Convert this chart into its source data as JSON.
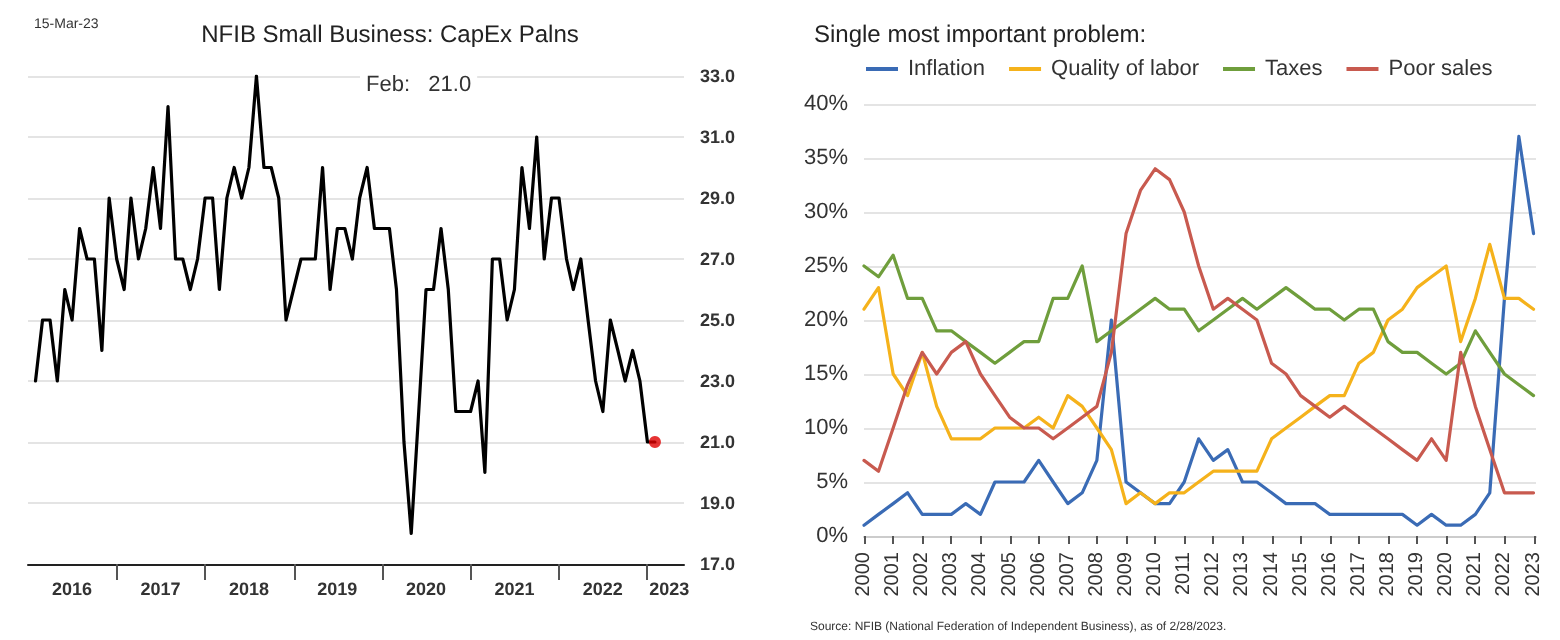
{
  "chart_data": [
    {
      "type": "line",
      "title": "NFIB Small Business: CapEx Palns",
      "annotations": [
        "15-Mar-23",
        "Feb:   21.0"
      ],
      "grid": "y",
      "line_style": "solid",
      "marker": "none",
      "x": [
        "2016-02",
        "2016-03",
        "2016-04",
        "2016-05",
        "2016-06",
        "2016-07",
        "2016-08",
        "2016-09",
        "2016-10",
        "2016-11",
        "2016-12",
        "2017-01",
        "2017-02",
        "2017-03",
        "2017-04",
        "2017-05",
        "2017-06",
        "2017-07",
        "2017-08",
        "2017-09",
        "2017-10",
        "2017-11",
        "2017-12",
        "2018-01",
        "2018-02",
        "2018-03",
        "2018-04",
        "2018-05",
        "2018-06",
        "2018-07",
        "2018-08",
        "2018-09",
        "2018-10",
        "2018-11",
        "2018-12",
        "2019-01",
        "2019-02",
        "2019-03",
        "2019-04",
        "2019-05",
        "2019-06",
        "2019-07",
        "2019-08",
        "2019-09",
        "2019-10",
        "2019-11",
        "2019-12",
        "2020-01",
        "2020-02",
        "2020-03",
        "2020-04",
        "2020-05",
        "2020-06",
        "2020-07",
        "2020-08",
        "2020-09",
        "2020-10",
        "2020-11",
        "2020-12",
        "2021-01",
        "2021-02",
        "2021-03",
        "2021-04",
        "2021-05",
        "2021-06",
        "2021-07",
        "2021-08",
        "2021-09",
        "2021-10",
        "2021-11",
        "2021-12",
        "2022-01",
        "2022-02",
        "2022-03",
        "2022-04",
        "2022-05",
        "2022-06",
        "2022-07",
        "2022-08",
        "2022-09",
        "2022-10",
        "2022-11",
        "2022-12",
        "2023-01",
        "2023-02"
      ],
      "series": [
        {
          "color": "#000000",
          "values": [
            23,
            25,
            25,
            23,
            26,
            25,
            28,
            27,
            27,
            24,
            29,
            27,
            26,
            29,
            27,
            28,
            30,
            28,
            32,
            27,
            27,
            26,
            27,
            29,
            29,
            26,
            29,
            30,
            29,
            30,
            33,
            30,
            30,
            29,
            25,
            26,
            27,
            27,
            27,
            30,
            26,
            28,
            28,
            27,
            29,
            30,
            28,
            28,
            28,
            26,
            21,
            18,
            22,
            26,
            26,
            28,
            26,
            22,
            22,
            22,
            23,
            20,
            27,
            27,
            25,
            26,
            30,
            28,
            31,
            27,
            29,
            29,
            27,
            26,
            27,
            25,
            23,
            22,
            25,
            24,
            23,
            24,
            23,
            21,
            21
          ]
        },
        {
          "type": "scatter",
          "marker": "circle",
          "color": "#e00000",
          "x": [
            "2023-02"
          ],
          "values": [
            21
          ]
        }
      ],
      "xlim": [
        "2016-01",
        "2023-06"
      ],
      "xticks": [
        {
          "value": "2016-07",
          "label": "2016"
        },
        {
          "value": "2017-01",
          "label": null
        },
        {
          "value": "2017-07",
          "label": "2017"
        },
        {
          "value": "2018-01",
          "label": null
        },
        {
          "value": "2018-07",
          "label": "2018"
        },
        {
          "value": "2019-01",
          "label": null
        },
        {
          "value": "2019-07",
          "label": "2019"
        },
        {
          "value": "2020-01",
          "label": null
        },
        {
          "value": "2020-07",
          "label": "2020"
        },
        {
          "value": "2021-01",
          "label": null
        },
        {
          "value": "2021-07",
          "label": "2021"
        },
        {
          "value": "2022-01",
          "label": null
        },
        {
          "value": "2022-07",
          "label": "2022"
        },
        {
          "value": "2023-01",
          "label": null
        },
        {
          "value": "2023-04",
          "label": "2023"
        }
      ],
      "ylim": [
        17,
        33
      ],
      "yticks": [
        {
          "value": 17,
          "label": "17.0"
        },
        {
          "value": 19,
          "label": "19.0"
        },
        {
          "value": 21,
          "label": "21.0"
        },
        {
          "value": 23,
          "label": "23.0"
        },
        {
          "value": 25,
          "label": "25.0"
        },
        {
          "value": 27,
          "label": "27.0"
        },
        {
          "value": 29,
          "label": "29.0"
        },
        {
          "value": 31,
          "label": "31.0"
        },
        {
          "value": 33,
          "label": "33.0"
        }
      ]
    },
    {
      "type": "line",
      "title": "Single most important problem:",
      "annotations": [
        "Source: NFIB (National Federation of Independent Business), as of 2/28/2023."
      ],
      "grid": "y",
      "legend": "top left",
      "line_style": "solid",
      "marker": "none",
      "x": [
        "2000-01",
        "2000-07",
        "2001-01",
        "2001-07",
        "2002-01",
        "2002-07",
        "2003-01",
        "2003-07",
        "2004-01",
        "2004-07",
        "2005-01",
        "2005-07",
        "2006-01",
        "2006-07",
        "2007-01",
        "2007-07",
        "2008-01",
        "2008-07",
        "2009-01",
        "2009-07",
        "2010-01",
        "2010-07",
        "2011-01",
        "2011-07",
        "2012-01",
        "2012-07",
        "2013-01",
        "2013-07",
        "2014-01",
        "2014-07",
        "2015-01",
        "2015-07",
        "2016-01",
        "2016-07",
        "2017-01",
        "2017-07",
        "2018-01",
        "2018-07",
        "2019-01",
        "2019-07",
        "2020-01",
        "2020-07",
        "2021-01",
        "2021-07",
        "2022-01",
        "2022-07",
        "2023-01"
      ],
      "series": [
        {
          "name": "Inflation",
          "color": "#3a6bb5",
          "values": [
            1,
            2,
            3,
            4,
            2,
            2,
            2,
            3,
            2,
            5,
            5,
            5,
            7,
            5,
            3,
            4,
            7,
            20,
            5,
            4,
            3,
            3,
            5,
            9,
            7,
            8,
            5,
            5,
            4,
            3,
            3,
            3,
            2,
            2,
            2,
            2,
            2,
            2,
            1,
            2,
            1,
            1,
            2,
            4,
            22,
            37,
            28
          ]
        },
        {
          "name": "Quality of labor",
          "color": "#f5b21b",
          "values": [
            21,
            23,
            15,
            13,
            17,
            12,
            9,
            9,
            9,
            10,
            10,
            10,
            11,
            10,
            13,
            12,
            10,
            8,
            3,
            4,
            3,
            4,
            4,
            5,
            6,
            6,
            6,
            6,
            9,
            10,
            11,
            12,
            13,
            13,
            16,
            17,
            20,
            21,
            23,
            24,
            25,
            18,
            22,
            27,
            22,
            22,
            21
          ]
        },
        {
          "name": "Taxes",
          "color": "#6f9e3c",
          "values": [
            25,
            24,
            26,
            22,
            22,
            19,
            19,
            18,
            17,
            16,
            17,
            18,
            18,
            22,
            22,
            25,
            18,
            19,
            20,
            21,
            22,
            21,
            21,
            19,
            20,
            21,
            22,
            21,
            22,
            23,
            22,
            21,
            21,
            20,
            21,
            21,
            18,
            17,
            17,
            16,
            15,
            16,
            19,
            17,
            15,
            14,
            13
          ]
        },
        {
          "name": "Poor sales",
          "color": "#c85a4f",
          "values": [
            7,
            6,
            10,
            14,
            17,
            15,
            17,
            18,
            15,
            13,
            11,
            10,
            10,
            9,
            10,
            11,
            12,
            17,
            28,
            32,
            34,
            33,
            30,
            25,
            21,
            22,
            21,
            20,
            16,
            15,
            13,
            12,
            11,
            12,
            11,
            10,
            9,
            8,
            7,
            9,
            7,
            17,
            12,
            8,
            4,
            4,
            4
          ]
        }
      ],
      "xlim": [
        "2000-01",
        "2023-02"
      ],
      "xticks": [
        "2000",
        "2001",
        "2002",
        "2003",
        "2004",
        "2005",
        "2006",
        "2007",
        "2008",
        "2009",
        "2010",
        "2011",
        "2012",
        "2013",
        "2014",
        "2015",
        "2016",
        "2017",
        "2018",
        "2019",
        "2020",
        "2021",
        "2022",
        "2023"
      ],
      "ylim": [
        0,
        40
      ],
      "yticks": [
        {
          "value": 0,
          "label": "0%"
        },
        {
          "value": 5,
          "label": "5%"
        },
        {
          "value": 10,
          "label": "10%"
        },
        {
          "value": 15,
          "label": "15%"
        },
        {
          "value": 20,
          "label": "20%"
        },
        {
          "value": 25,
          "label": "25%"
        },
        {
          "value": 30,
          "label": "30%"
        },
        {
          "value": 35,
          "label": "35%"
        },
        {
          "value": 40,
          "label": "40%"
        }
      ]
    }
  ]
}
